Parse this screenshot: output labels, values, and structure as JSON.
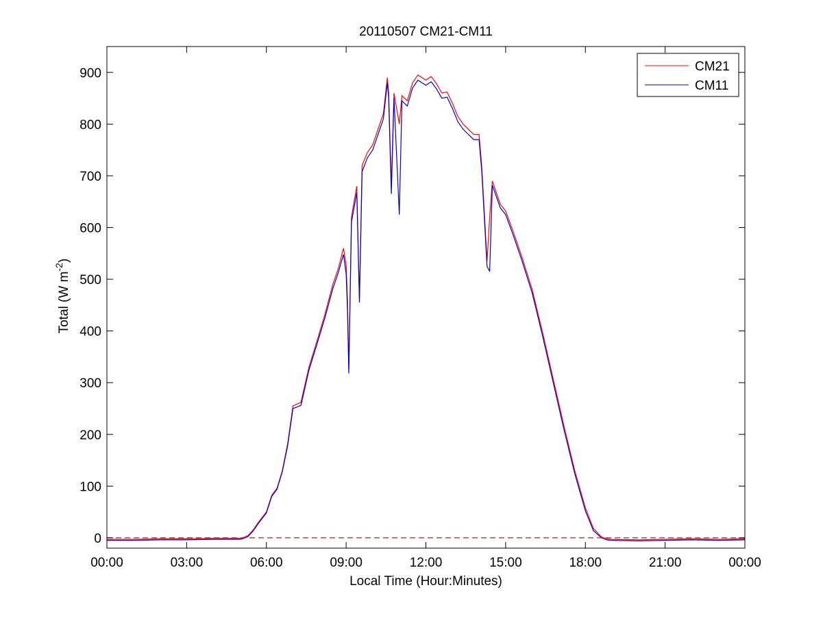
{
  "chart_data": {
    "type": "line",
    "title": "20110507 CM21-CM11",
    "xlabel": "Local Time (Hour:Minutes)",
    "ylabel": {
      "prefix": "Total (W m",
      "superscript": "-2",
      "suffix": ")"
    },
    "xlim": [
      0,
      24
    ],
    "ylim": [
      -20,
      950
    ],
    "x_ticks": [
      {
        "value": 0,
        "label": "00:00"
      },
      {
        "value": 3,
        "label": "03:00"
      },
      {
        "value": 6,
        "label": "06:00"
      },
      {
        "value": 9,
        "label": "09:00"
      },
      {
        "value": 12,
        "label": "12:00"
      },
      {
        "value": 15,
        "label": "15:00"
      },
      {
        "value": 18,
        "label": "18:00"
      },
      {
        "value": 21,
        "label": "21:00"
      },
      {
        "value": 24,
        "label": "00:00"
      }
    ],
    "y_ticks": [
      {
        "value": 0,
        "label": "0"
      },
      {
        "value": 100,
        "label": "100"
      },
      {
        "value": 200,
        "label": "200"
      },
      {
        "value": 300,
        "label": "300"
      },
      {
        "value": 400,
        "label": "400"
      },
      {
        "value": 500,
        "label": "500"
      },
      {
        "value": 600,
        "label": "600"
      },
      {
        "value": 700,
        "label": "700"
      },
      {
        "value": 800,
        "label": "800"
      },
      {
        "value": 900,
        "label": "900"
      }
    ],
    "grid": false,
    "legend_position": "top-right",
    "reference_line": {
      "y": 0,
      "style": "dashed",
      "color": "#b22222"
    },
    "series": [
      {
        "name": "CM21",
        "color": "#ff0000",
        "points": [
          [
            0,
            -3
          ],
          [
            1,
            -3
          ],
          [
            2,
            -2
          ],
          [
            3,
            -2
          ],
          [
            4,
            -1
          ],
          [
            5,
            -1
          ],
          [
            5.1,
            0
          ],
          [
            5.3,
            4
          ],
          [
            5.5,
            15
          ],
          [
            5.7,
            30
          ],
          [
            6,
            50
          ],
          [
            6.2,
            82
          ],
          [
            6.4,
            96
          ],
          [
            6.6,
            130
          ],
          [
            6.8,
            182
          ],
          [
            7,
            255
          ],
          [
            7.3,
            262
          ],
          [
            7.6,
            330
          ],
          [
            7.9,
            380
          ],
          [
            8.2,
            432
          ],
          [
            8.5,
            490
          ],
          [
            8.7,
            520
          ],
          [
            8.9,
            560
          ],
          [
            9,
            528
          ],
          [
            9.05,
            460
          ],
          [
            9.1,
            325
          ],
          [
            9.2,
            620
          ],
          [
            9.4,
            680
          ],
          [
            9.5,
            460
          ],
          [
            9.6,
            720
          ],
          [
            9.8,
            745
          ],
          [
            10,
            760
          ],
          [
            10.2,
            790
          ],
          [
            10.4,
            820
          ],
          [
            10.55,
            890
          ],
          [
            10.6,
            860
          ],
          [
            10.7,
            680
          ],
          [
            10.8,
            860
          ],
          [
            11,
            800
          ],
          [
            11.1,
            855
          ],
          [
            11.3,
            845
          ],
          [
            11.5,
            880
          ],
          [
            11.7,
            895
          ],
          [
            12,
            885
          ],
          [
            12.2,
            892
          ],
          [
            12.4,
            878
          ],
          [
            12.6,
            860
          ],
          [
            12.8,
            862
          ],
          [
            13,
            840
          ],
          [
            13.2,
            815
          ],
          [
            13.4,
            800
          ],
          [
            13.6,
            790
          ],
          [
            13.8,
            780
          ],
          [
            14,
            780
          ],
          [
            14.1,
            720
          ],
          [
            14.3,
            535
          ],
          [
            14.4,
            620
          ],
          [
            14.5,
            690
          ],
          [
            14.8,
            645
          ],
          [
            15,
            632
          ],
          [
            15.3,
            590
          ],
          [
            15.6,
            545
          ],
          [
            16,
            480
          ],
          [
            16.4,
            395
          ],
          [
            16.8,
            305
          ],
          [
            17.2,
            215
          ],
          [
            17.6,
            130
          ],
          [
            18,
            58
          ],
          [
            18.3,
            18
          ],
          [
            18.6,
            2
          ],
          [
            18.8,
            -2
          ],
          [
            19,
            -3
          ],
          [
            20,
            -4
          ],
          [
            21,
            -3
          ],
          [
            22,
            -2
          ],
          [
            23,
            -3
          ],
          [
            24,
            -2
          ]
        ]
      },
      {
        "name": "CM11",
        "color": "#0000cc",
        "points": [
          [
            0,
            -5
          ],
          [
            1,
            -5
          ],
          [
            2,
            -4
          ],
          [
            3,
            -4
          ],
          [
            4,
            -3
          ],
          [
            5,
            -3
          ],
          [
            5.1,
            -2
          ],
          [
            5.3,
            2
          ],
          [
            5.5,
            13
          ],
          [
            5.7,
            28
          ],
          [
            6,
            48
          ],
          [
            6.2,
            80
          ],
          [
            6.4,
            94
          ],
          [
            6.6,
            128
          ],
          [
            6.8,
            178
          ],
          [
            7,
            250
          ],
          [
            7.3,
            256
          ],
          [
            7.6,
            324
          ],
          [
            7.9,
            374
          ],
          [
            8.2,
            425
          ],
          [
            8.5,
            482
          ],
          [
            8.7,
            512
          ],
          [
            8.9,
            548
          ],
          [
            9,
            510
          ],
          [
            9.05,
            440
          ],
          [
            9.1,
            318
          ],
          [
            9.2,
            610
          ],
          [
            9.4,
            668
          ],
          [
            9.5,
            455
          ],
          [
            9.6,
            708
          ],
          [
            9.8,
            735
          ],
          [
            10,
            750
          ],
          [
            10.2,
            780
          ],
          [
            10.4,
            810
          ],
          [
            10.55,
            880
          ],
          [
            10.6,
            850
          ],
          [
            10.7,
            665
          ],
          [
            10.8,
            850
          ],
          [
            11,
            625
          ],
          [
            11.1,
            845
          ],
          [
            11.3,
            835
          ],
          [
            11.5,
            870
          ],
          [
            11.7,
            885
          ],
          [
            12,
            875
          ],
          [
            12.2,
            882
          ],
          [
            12.4,
            868
          ],
          [
            12.6,
            850
          ],
          [
            12.8,
            852
          ],
          [
            13,
            830
          ],
          [
            13.2,
            805
          ],
          [
            13.4,
            790
          ],
          [
            13.6,
            780
          ],
          [
            13.8,
            770
          ],
          [
            14,
            770
          ],
          [
            14.1,
            710
          ],
          [
            14.3,
            525
          ],
          [
            14.4,
            515
          ],
          [
            14.5,
            682
          ],
          [
            14.8,
            638
          ],
          [
            15,
            625
          ],
          [
            15.3,
            583
          ],
          [
            15.6,
            538
          ],
          [
            16,
            473
          ],
          [
            16.4,
            388
          ],
          [
            16.8,
            298
          ],
          [
            17.2,
            208
          ],
          [
            17.6,
            124
          ],
          [
            18,
            52
          ],
          [
            18.3,
            14
          ],
          [
            18.6,
            0
          ],
          [
            18.8,
            -4
          ],
          [
            19,
            -5
          ],
          [
            20,
            -6
          ],
          [
            21,
            -5
          ],
          [
            22,
            -4
          ],
          [
            23,
            -5
          ],
          [
            24,
            -4
          ]
        ]
      }
    ]
  }
}
